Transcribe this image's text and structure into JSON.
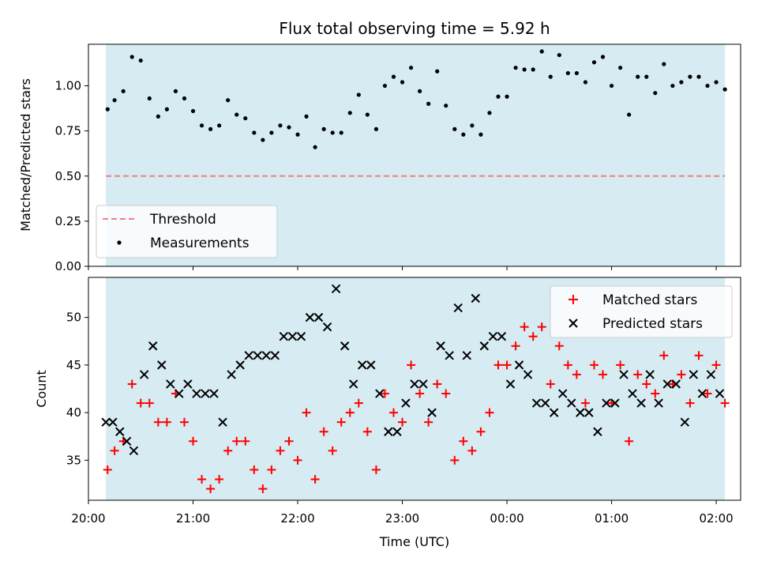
{
  "chart_data": [
    {
      "type": "scatter",
      "title": "Flux total observing time = 5.92 h",
      "xlabel": "",
      "ylabel": "Matched/Predicted stars",
      "ylim": [
        0.0,
        1.23
      ],
      "xlim": [
        "20:00",
        "02:14"
      ],
      "yticks": [
        "0.00",
        "0.25",
        "0.50",
        "0.75",
        "1.00"
      ],
      "shaded_region": {
        "start": "20:10",
        "end": "02:05",
        "color": "#add8e6"
      },
      "legend_position": "lower-left",
      "series": [
        {
          "name": "Threshold",
          "kind": "dashed-line",
          "color": "#f08080",
          "y": 0.5
        },
        {
          "name": "Measurements",
          "kind": "dots",
          "color": "#000000",
          "points": [
            [
              "20:11",
              0.87
            ],
            [
              "20:15",
              0.92
            ],
            [
              "20:20",
              0.97
            ],
            [
              "20:25",
              1.16
            ],
            [
              "20:30",
              1.14
            ],
            [
              "20:35",
              0.93
            ],
            [
              "20:40",
              0.83
            ],
            [
              "20:45",
              0.87
            ],
            [
              "20:50",
              0.97
            ],
            [
              "20:55",
              0.93
            ],
            [
              "21:00",
              0.86
            ],
            [
              "21:05",
              0.78
            ],
            [
              "21:10",
              0.76
            ],
            [
              "21:15",
              0.78
            ],
            [
              "21:20",
              0.92
            ],
            [
              "21:25",
              0.84
            ],
            [
              "21:30",
              0.82
            ],
            [
              "21:35",
              0.74
            ],
            [
              "21:40",
              0.7
            ],
            [
              "21:45",
              0.74
            ],
            [
              "21:50",
              0.78
            ],
            [
              "21:55",
              0.77
            ],
            [
              "22:00",
              0.73
            ],
            [
              "22:05",
              0.83
            ],
            [
              "22:10",
              0.66
            ],
            [
              "22:15",
              0.76
            ],
            [
              "22:20",
              0.74
            ],
            [
              "22:25",
              0.74
            ],
            [
              "22:30",
              0.85
            ],
            [
              "22:35",
              0.95
            ],
            [
              "22:40",
              0.84
            ],
            [
              "22:45",
              0.76
            ],
            [
              "22:50",
              1.0
            ],
            [
              "22:55",
              1.05
            ],
            [
              "23:00",
              1.02
            ],
            [
              "23:05",
              1.1
            ],
            [
              "23:10",
              0.97
            ],
            [
              "23:15",
              0.9
            ],
            [
              "23:20",
              1.08
            ],
            [
              "23:25",
              0.89
            ],
            [
              "23:30",
              0.76
            ],
            [
              "23:35",
              0.73
            ],
            [
              "23:40",
              0.78
            ],
            [
              "23:45",
              0.73
            ],
            [
              "23:50",
              0.85
            ],
            [
              "23:55",
              0.94
            ],
            [
              "00:00",
              0.94
            ],
            [
              "00:05",
              1.1
            ],
            [
              "00:10",
              1.09
            ],
            [
              "00:15",
              1.09
            ],
            [
              "00:20",
              1.19
            ],
            [
              "00:25",
              1.05
            ],
            [
              "00:30",
              1.17
            ],
            [
              "00:35",
              1.07
            ],
            [
              "00:40",
              1.07
            ],
            [
              "00:45",
              1.02
            ],
            [
              "00:50",
              1.13
            ],
            [
              "00:55",
              1.16
            ],
            [
              "01:00",
              1.0
            ],
            [
              "01:05",
              1.1
            ],
            [
              "01:10",
              0.84
            ],
            [
              "01:15",
              1.05
            ],
            [
              "01:20",
              1.05
            ],
            [
              "01:25",
              0.96
            ],
            [
              "01:30",
              1.12
            ],
            [
              "01:35",
              1.0
            ],
            [
              "01:40",
              1.02
            ],
            [
              "01:45",
              1.05
            ],
            [
              "01:50",
              1.05
            ],
            [
              "01:55",
              1.0
            ],
            [
              "02:00",
              1.02
            ],
            [
              "02:05",
              0.98
            ]
          ]
        }
      ]
    },
    {
      "type": "scatter",
      "title": "",
      "xlabel": "Time (UTC)",
      "ylabel": "Count",
      "ylim": [
        30.8,
        54.2
      ],
      "xlim": [
        "20:00",
        "02:14"
      ],
      "yticks": [
        "35",
        "40",
        "45",
        "50"
      ],
      "xticks": [
        "20:00",
        "21:00",
        "22:00",
        "23:00",
        "00:00",
        "01:00",
        "02:00"
      ],
      "shaded_region": {
        "start": "20:10",
        "end": "02:05",
        "color": "#add8e6"
      },
      "legend_position": "top-right",
      "series": [
        {
          "name": "Matched stars",
          "kind": "plus",
          "color": "#ff0000",
          "points": [
            [
              "20:11",
              34
            ],
            [
              "20:15",
              36
            ],
            [
              "20:20",
              37
            ],
            [
              "20:25",
              43
            ],
            [
              "20:30",
              41
            ],
            [
              "20:35",
              41
            ],
            [
              "20:40",
              39
            ],
            [
              "20:45",
              39
            ],
            [
              "20:50",
              42
            ],
            [
              "20:55",
              39
            ],
            [
              "21:00",
              37
            ],
            [
              "21:05",
              33
            ],
            [
              "21:10",
              32
            ],
            [
              "21:15",
              33
            ],
            [
              "21:20",
              36
            ],
            [
              "21:25",
              37
            ],
            [
              "21:30",
              37
            ],
            [
              "21:35",
              34
            ],
            [
              "21:40",
              32
            ],
            [
              "21:45",
              34
            ],
            [
              "21:50",
              36
            ],
            [
              "21:55",
              37
            ],
            [
              "22:00",
              35
            ],
            [
              "22:05",
              40
            ],
            [
              "22:10",
              33
            ],
            [
              "22:15",
              38
            ],
            [
              "22:20",
              36
            ],
            [
              "22:25",
              39
            ],
            [
              "22:30",
              40
            ],
            [
              "22:35",
              41
            ],
            [
              "22:40",
              38
            ],
            [
              "22:45",
              34
            ],
            [
              "22:50",
              42
            ],
            [
              "22:55",
              40
            ],
            [
              "23:00",
              39
            ],
            [
              "23:05",
              45
            ],
            [
              "23:10",
              42
            ],
            [
              "23:15",
              39
            ],
            [
              "23:20",
              43
            ],
            [
              "23:25",
              42
            ],
            [
              "23:30",
              35
            ],
            [
              "23:35",
              37
            ],
            [
              "23:40",
              36
            ],
            [
              "23:45",
              38
            ],
            [
              "23:50",
              40
            ],
            [
              "23:55",
              45
            ],
            [
              "00:00",
              45
            ],
            [
              "00:05",
              47
            ],
            [
              "00:10",
              49
            ],
            [
              "00:15",
              48
            ],
            [
              "00:20",
              49
            ],
            [
              "00:25",
              43
            ],
            [
              "00:30",
              47
            ],
            [
              "00:35",
              45
            ],
            [
              "00:40",
              44
            ],
            [
              "00:45",
              41
            ],
            [
              "00:50",
              45
            ],
            [
              "00:55",
              44
            ],
            [
              "01:00",
              41
            ],
            [
              "01:05",
              45
            ],
            [
              "01:10",
              37
            ],
            [
              "01:15",
              44
            ],
            [
              "01:20",
              43
            ],
            [
              "01:25",
              42
            ],
            [
              "01:30",
              46
            ],
            [
              "01:35",
              43
            ],
            [
              "01:40",
              44
            ],
            [
              "01:45",
              41
            ],
            [
              "01:50",
              46
            ],
            [
              "01:55",
              42
            ],
            [
              "02:00",
              45
            ],
            [
              "02:05",
              41
            ]
          ]
        },
        {
          "name": "Predicted stars",
          "kind": "x",
          "color": "#000000",
          "points": [
            [
              "20:10",
              39
            ],
            [
              "20:14",
              39
            ],
            [
              "20:18",
              38
            ],
            [
              "20:22",
              37
            ],
            [
              "20:26",
              36
            ],
            [
              "20:32",
              44
            ],
            [
              "20:37",
              47
            ],
            [
              "20:42",
              45
            ],
            [
              "20:47",
              43
            ],
            [
              "20:52",
              42
            ],
            [
              "20:57",
              43
            ],
            [
              "21:02",
              42
            ],
            [
              "21:07",
              42
            ],
            [
              "21:12",
              42
            ],
            [
              "21:17",
              39
            ],
            [
              "21:22",
              44
            ],
            [
              "21:27",
              45
            ],
            [
              "21:32",
              46
            ],
            [
              "21:37",
              46
            ],
            [
              "21:42",
              46
            ],
            [
              "21:47",
              46
            ],
            [
              "21:52",
              48
            ],
            [
              "21:57",
              48
            ],
            [
              "22:02",
              48
            ],
            [
              "22:07",
              50
            ],
            [
              "22:12",
              50
            ],
            [
              "22:17",
              49
            ],
            [
              "22:22",
              53
            ],
            [
              "22:27",
              47
            ],
            [
              "22:32",
              43
            ],
            [
              "22:37",
              45
            ],
            [
              "22:42",
              45
            ],
            [
              "22:47",
              42
            ],
            [
              "22:52",
              38
            ],
            [
              "22:57",
              38
            ],
            [
              "23:02",
              41
            ],
            [
              "23:07",
              43
            ],
            [
              "23:12",
              43
            ],
            [
              "23:17",
              40
            ],
            [
              "23:22",
              47
            ],
            [
              "23:27",
              46
            ],
            [
              "23:32",
              51
            ],
            [
              "23:37",
              46
            ],
            [
              "23:42",
              52
            ],
            [
              "23:47",
              47
            ],
            [
              "23:52",
              48
            ],
            [
              "23:57",
              48
            ],
            [
              "00:02",
              43
            ],
            [
              "00:07",
              45
            ],
            [
              "00:12",
              44
            ],
            [
              "00:17",
              41
            ],
            [
              "00:22",
              41
            ],
            [
              "00:27",
              40
            ],
            [
              "00:32",
              42
            ],
            [
              "00:37",
              41
            ],
            [
              "00:42",
              40
            ],
            [
              "00:47",
              40
            ],
            [
              "00:52",
              38
            ],
            [
              "00:57",
              41
            ],
            [
              "01:02",
              41
            ],
            [
              "01:07",
              44
            ],
            [
              "01:12",
              42
            ],
            [
              "01:17",
              41
            ],
            [
              "01:22",
              44
            ],
            [
              "01:27",
              41
            ],
            [
              "01:32",
              43
            ],
            [
              "01:37",
              43
            ],
            [
              "01:42",
              39
            ],
            [
              "01:47",
              44
            ],
            [
              "01:52",
              42
            ],
            [
              "01:57",
              44
            ],
            [
              "02:02",
              42
            ]
          ]
        }
      ]
    }
  ]
}
